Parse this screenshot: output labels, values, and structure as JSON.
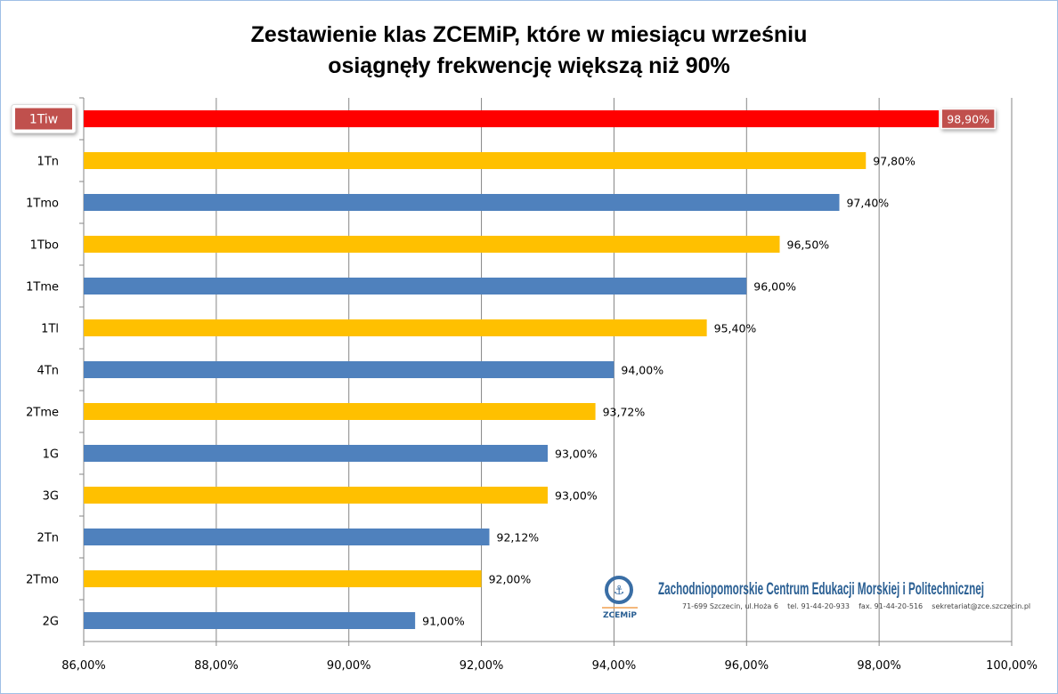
{
  "chart_data": {
    "type": "bar",
    "orientation": "horizontal",
    "title": "Zestawienie klas ZCEMiP, które w miesiącu wrześniu osiągnęły frekwencję większą niż 90%",
    "title_lines": [
      "Zestawienie klas ZCEMiP, które w miesiącu wrześniu",
      "osiągnęły frekwencję większą niż 90%"
    ],
    "categories": [
      "1Tiw",
      "1Tn",
      "1Tmo",
      "1Tbo",
      "1Tme",
      "1Tl",
      "4Tn",
      "2Tme",
      "1G",
      "3G",
      "2Tn",
      "2Tmo",
      "2G"
    ],
    "values": [
      98.9,
      97.8,
      97.4,
      96.5,
      96.0,
      95.4,
      94.0,
      93.72,
      93.0,
      93.0,
      92.12,
      92.0,
      91.0
    ],
    "value_labels": [
      "98,90%",
      "97,80%",
      "97,40%",
      "96,50%",
      "96,00%",
      "95,40%",
      "94,00%",
      "93,72%",
      "93,00%",
      "93,00%",
      "92,12%",
      "92,00%",
      "91,00%"
    ],
    "bar_colors": [
      "#ff0000",
      "#ffc000",
      "#4f81bd",
      "#ffc000",
      "#4f81bd",
      "#ffc000",
      "#4f81bd",
      "#ffc000",
      "#4f81bd",
      "#ffc000",
      "#4f81bd",
      "#ffc000",
      "#4f81bd"
    ],
    "highlight": {
      "category": "1Tiw",
      "color": "#c0504d"
    },
    "xlim": [
      86,
      100
    ],
    "x_ticks": [
      86,
      88,
      90,
      92,
      94,
      96,
      98,
      100
    ],
    "x_tick_labels": [
      "86,00%",
      "88,00%",
      "90,00%",
      "92,00%",
      "94,00%",
      "96,00%",
      "98,00%",
      "100,00%"
    ],
    "grid": "vertical",
    "xlabel": "",
    "ylabel": ""
  },
  "logo": {
    "short": "ZCEMiP",
    "name": "Zachodniopomorskie Centrum Edukacji Morskiej i Politechnicznej",
    "address": "71-699 Szczecin, ul.Hoża 6    tel. 91-44-20-933    fax. 91-44-20-516    sekretariat@zce.szczecin.pl"
  }
}
